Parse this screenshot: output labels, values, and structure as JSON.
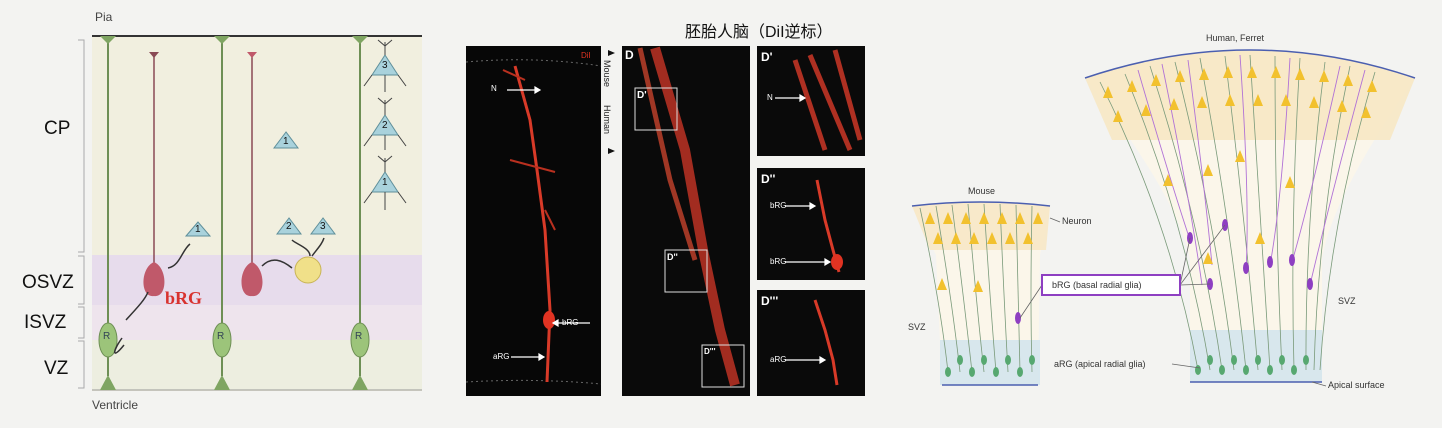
{
  "left_panel": {
    "pia": "Pia",
    "ventricle": "Ventricle",
    "layers": [
      "CP",
      "OSVZ",
      "ISVZ",
      "VZ"
    ],
    "brg_label": "bRG",
    "neuron_numbers": [
      "1",
      "2",
      "3",
      "1",
      "2",
      "3",
      "1",
      "2",
      "3"
    ],
    "rg_letter": "R"
  },
  "middle_panel": {
    "title": "胚胎人脑（DiI逆标）",
    "dii_label": "DiI",
    "side_mouse": "Mouse",
    "side_human": "Human",
    "panel_D": "D",
    "panel_D1": "D'",
    "panel_D2": "D''",
    "panel_D3": "D'''",
    "label_N": "N",
    "label_bRG": "bRG",
    "label_aRG": "aRG"
  },
  "right_panel": {
    "human_ferret": "Human, Ferret",
    "mouse": "Mouse",
    "neuron": "Neuron",
    "svz_left": "SVZ",
    "svz_right": "SVZ",
    "brg_box": "bRG (basal radial glia)",
    "arg": "aRG (apical radial glia)",
    "apical_surface": "Apical surface"
  },
  "colors": {
    "brg_red": "#d8322e",
    "neuron_yellow": "#f2c12e",
    "purple": "#8e3fc2",
    "green": "#57a870",
    "red_signal": "#e03322"
  }
}
